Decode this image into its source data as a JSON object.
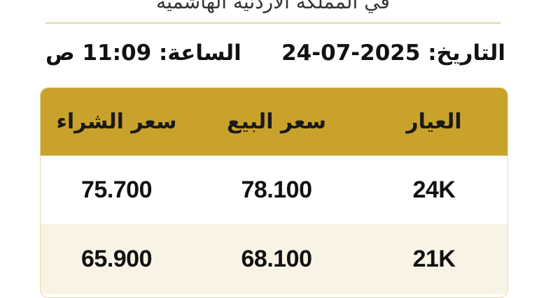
{
  "header": {
    "subtitle": "في المملكة الأردنية الهاشمية"
  },
  "info": {
    "date": "التاريخ: 2025-07-24",
    "time": "الساعة: 11:09 ص"
  },
  "table": {
    "columns": [
      "العيار",
      "سعر البيع",
      "سعر الشراء"
    ],
    "rows": [
      {
        "karat": "24K",
        "sell": "78.100",
        "buy": "75.700"
      },
      {
        "karat": "21K",
        "sell": "68.100",
        "buy": "65.900"
      }
    ]
  },
  "colors": {
    "header_gold": "#c9a22c",
    "row_alt": "#f8f3e5"
  }
}
